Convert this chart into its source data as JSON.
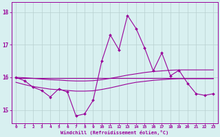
{
  "x": [
    0,
    1,
    2,
    3,
    4,
    5,
    6,
    7,
    8,
    9,
    10,
    11,
    12,
    13,
    14,
    15,
    16,
    17,
    18,
    19,
    20,
    21,
    22,
    23
  ],
  "line1": [
    16.0,
    15.9,
    15.7,
    15.6,
    15.4,
    15.65,
    15.55,
    14.82,
    14.88,
    15.3,
    16.5,
    17.3,
    16.85,
    17.9,
    17.5,
    16.9,
    16.2,
    16.75,
    16.05,
    16.22,
    15.82,
    15.5,
    15.45,
    15.5
  ],
  "line2": [
    15.85,
    15.78,
    15.72,
    15.68,
    15.64,
    15.62,
    15.6,
    15.58,
    15.58,
    15.59,
    15.63,
    15.68,
    15.74,
    15.8,
    15.85,
    15.88,
    15.91,
    15.93,
    15.95,
    15.96,
    15.96,
    15.96,
    15.96,
    15.96
  ],
  "line3": [
    16.0,
    15.99,
    15.97,
    15.95,
    15.93,
    15.92,
    15.9,
    15.89,
    15.89,
    15.9,
    15.93,
    15.97,
    16.02,
    16.07,
    16.11,
    16.15,
    16.18,
    16.2,
    16.22,
    16.23,
    16.23,
    16.23,
    16.23,
    16.23
  ],
  "line4": [
    15.97,
    15.97,
    15.97,
    15.97,
    15.97,
    15.97,
    15.97,
    15.97,
    15.97,
    15.97,
    15.97,
    15.97,
    15.97,
    15.97,
    15.97,
    15.97,
    15.97,
    15.97,
    15.97,
    15.97,
    15.97,
    15.97,
    15.97,
    15.97
  ],
  "color": "#990099",
  "bg_color": "#d8f0f0",
  "grid_color": "#b8d0d0",
  "xlabel": "Windchill (Refroidissement éolien,°C)",
  "ylim": [
    14.6,
    18.3
  ],
  "xlim_min": -0.5,
  "xlim_max": 23.5,
  "yticks": [
    15,
    16,
    17,
    18
  ],
  "xticks": [
    0,
    1,
    2,
    3,
    4,
    5,
    6,
    7,
    8,
    9,
    10,
    11,
    12,
    13,
    14,
    15,
    16,
    17,
    18,
    19,
    20,
    21,
    22,
    23
  ]
}
